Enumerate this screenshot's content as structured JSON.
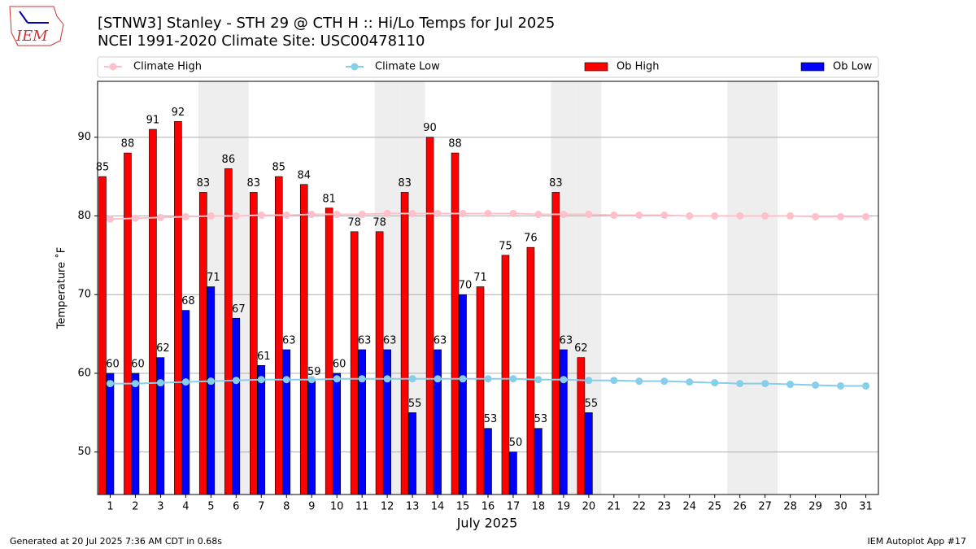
{
  "logo_text": "IEM",
  "chart_data": {
    "type": "bar",
    "title": "[STNW3] Stanley - STH 29 @ CTH H :: Hi/Lo Temps for Jul 2025",
    "subtitle": "NCEI 1991-2020 Climate Site: USC00478110",
    "xlabel": "July 2025",
    "ylabel": "Temperature $^\\circ$F",
    "ylabel_display": "Temperature ˚F",
    "categories": [
      1,
      2,
      3,
      4,
      5,
      6,
      7,
      8,
      9,
      10,
      11,
      12,
      13,
      14,
      15,
      16,
      17,
      18,
      19,
      20,
      21,
      22,
      23,
      24,
      25,
      26,
      27,
      28,
      29,
      30,
      31
    ],
    "series": [
      {
        "name": "Climate High",
        "kind": "line",
        "color": "#ffc0cb",
        "values": [
          79.6,
          79.7,
          79.8,
          79.9,
          80.0,
          80.0,
          80.1,
          80.1,
          80.2,
          80.2,
          80.2,
          80.3,
          80.3,
          80.3,
          80.3,
          80.3,
          80.3,
          80.2,
          80.2,
          80.2,
          80.1,
          80.1,
          80.1,
          80.0,
          80.0,
          80.0,
          80.0,
          80.0,
          79.9,
          79.9,
          79.9
        ]
      },
      {
        "name": "Climate Low",
        "kind": "line",
        "color": "#87ceeb",
        "values": [
          58.7,
          58.7,
          58.8,
          58.9,
          59.0,
          59.1,
          59.2,
          59.2,
          59.2,
          59.3,
          59.3,
          59.3,
          59.3,
          59.3,
          59.3,
          59.3,
          59.3,
          59.2,
          59.2,
          59.1,
          59.1,
          59.0,
          59.0,
          58.9,
          58.8,
          58.7,
          58.7,
          58.6,
          58.5,
          58.4,
          58.4
        ]
      },
      {
        "name": "Ob High",
        "kind": "bar",
        "color": "#ff0000",
        "values": [
          85,
          88,
          91,
          92,
          83,
          86,
          83,
          85,
          84,
          81,
          78,
          78,
          83,
          90,
          88,
          71,
          75,
          76,
          83,
          62,
          null,
          null,
          null,
          null,
          null,
          null,
          null,
          null,
          null,
          null,
          null
        ]
      },
      {
        "name": "Ob Low",
        "kind": "bar",
        "color": "#0000ff",
        "values": [
          60,
          60,
          62,
          68,
          71,
          67,
          61,
          63,
          59,
          60,
          63,
          63,
          55,
          63,
          70,
          53,
          50,
          53,
          63,
          55,
          null,
          null,
          null,
          null,
          null,
          null,
          null,
          null,
          null,
          null,
          null
        ]
      }
    ],
    "shaded_days": [
      5,
      6,
      12,
      13,
      19,
      20,
      26,
      27
    ],
    "ylim": [
      44.6,
      97.1
    ],
    "yticks": [
      50,
      60,
      70,
      80,
      90
    ],
    "grid": true,
    "footer_left": "Generated at 20 Jul 2025 7:36 AM CDT in 0.68s",
    "footer_right": "IEM Autoplot App #17"
  }
}
